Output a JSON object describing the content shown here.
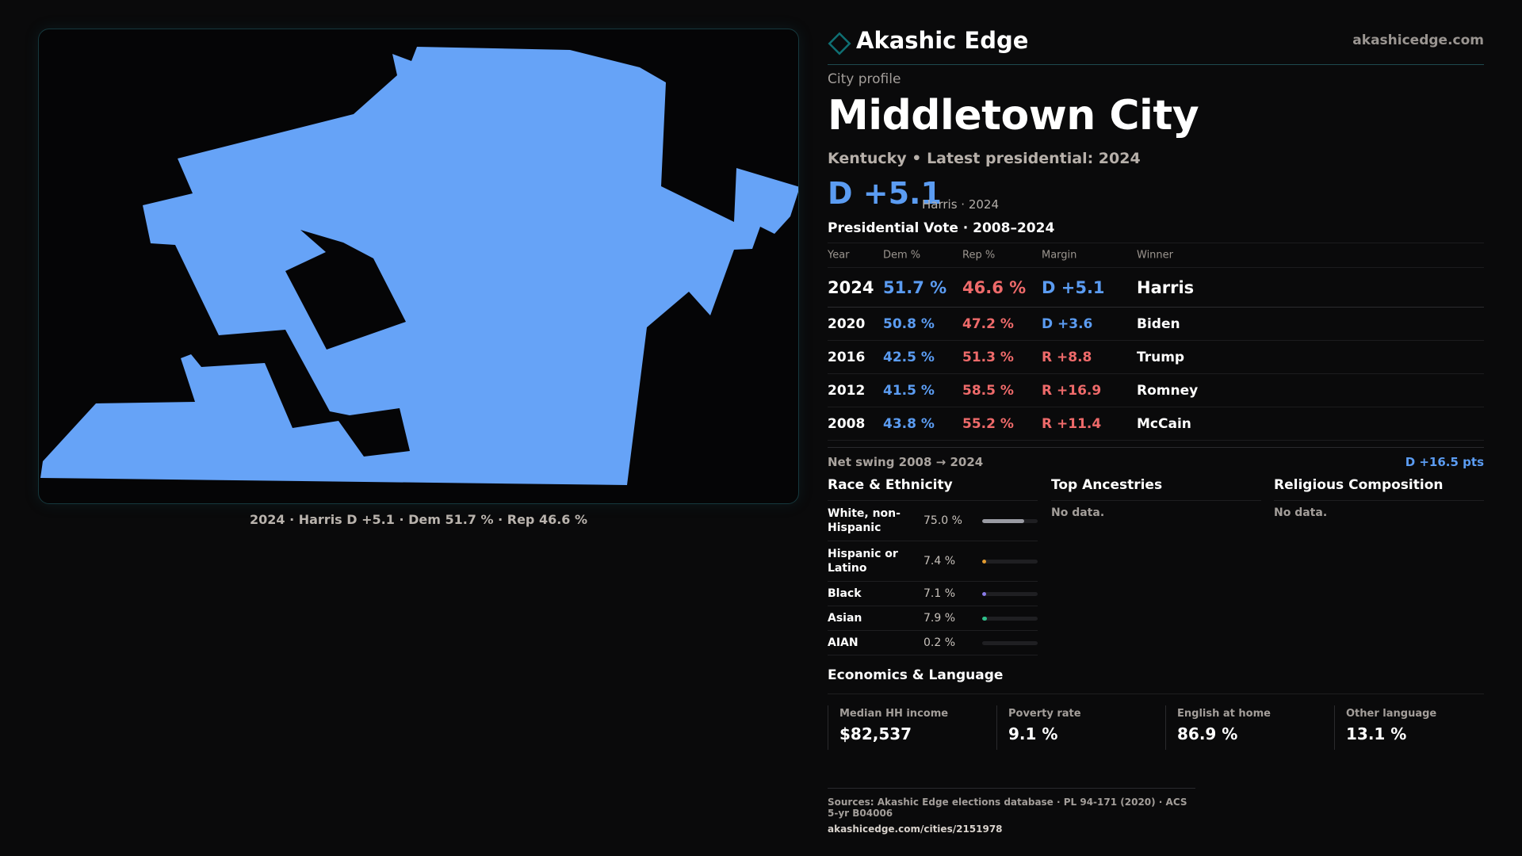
{
  "brand": {
    "name": "Akashic Edge",
    "url": "akashicedge.com",
    "accent": "#0f6f73"
  },
  "profile": {
    "eyebrow": "City profile",
    "title": "Middletown City",
    "subtitle": "Kentucky • Latest presidential: 2024",
    "margin": "D +5.1",
    "margin_note": "Harris · 2024"
  },
  "map": {
    "fill": "#66a3f7",
    "caption": "2024 · Harris D +5.1 · Dem 51.7 % · Rep 46.6 %"
  },
  "presidential": {
    "title": "Presidential Vote · 2008–2024",
    "headers": {
      "year": "Year",
      "dem": "Dem %",
      "rep": "Rep %",
      "margin": "Margin",
      "winner": "Winner"
    },
    "rows": [
      {
        "year": "2024",
        "dem": "51.7 %",
        "rep": "46.6 %",
        "margin": "D +5.1",
        "party": "D",
        "winner": "Harris"
      },
      {
        "year": "2020",
        "dem": "50.8 %",
        "rep": "47.2 %",
        "margin": "D +3.6",
        "party": "D",
        "winner": "Biden"
      },
      {
        "year": "2016",
        "dem": "42.5 %",
        "rep": "51.3 %",
        "margin": "R +8.8",
        "party": "R",
        "winner": "Trump"
      },
      {
        "year": "2012",
        "dem": "41.5 %",
        "rep": "58.5 %",
        "margin": "R +16.9",
        "party": "R",
        "winner": "Romney"
      },
      {
        "year": "2008",
        "dem": "43.8 %",
        "rep": "55.2 %",
        "margin": "R +11.4",
        "party": "R",
        "winner": "McCain"
      }
    ],
    "swing_label": "Net swing 2008 → 2024",
    "swing_value": "D +16.5 pts"
  },
  "colors": {
    "dem": "#5b9cf2",
    "rep": "#ee6a6a"
  },
  "race": {
    "title": "Race & Ethnicity",
    "rows": [
      {
        "name": "White, non-Hispanic",
        "pct": "75.0 %",
        "value": 75.0,
        "color": "#9a9ba3"
      },
      {
        "name": "Hispanic or Latino",
        "pct": "7.4 %",
        "value": 7.4,
        "color": "#e39b2f"
      },
      {
        "name": "Black",
        "pct": "7.1 %",
        "value": 7.1,
        "color": "#8a7be8"
      },
      {
        "name": "Asian",
        "pct": "7.9 %",
        "value": 7.9,
        "color": "#2fbf8a"
      },
      {
        "name": "AIAN",
        "pct": "0.2 %",
        "value": 0.2,
        "color": "#c86c6c"
      }
    ]
  },
  "ancestries": {
    "title": "Top Ancestries",
    "empty": "No data."
  },
  "religion": {
    "title": "Religious Composition",
    "empty": "No data."
  },
  "economics": {
    "title": "Economics & Language",
    "cells": [
      {
        "label": "Median HH income",
        "value": "$82,537"
      },
      {
        "label": "Poverty rate",
        "value": "9.1 %"
      },
      {
        "label": "English at home",
        "value": "86.9 %"
      },
      {
        "label": "Other language",
        "value": "13.1 %"
      }
    ]
  },
  "sources": {
    "text": "Sources: Akashic Edge elections database · PL 94-171 (2020) · ACS 5-yr B04006",
    "url": "akashicedge.com/cities/2151978"
  }
}
